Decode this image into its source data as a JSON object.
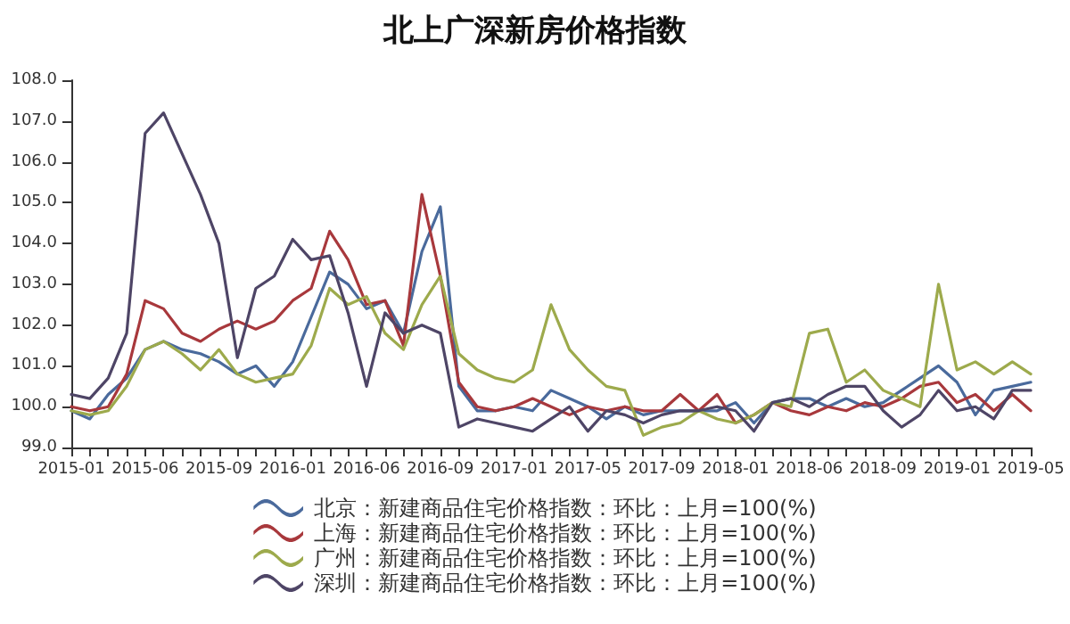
{
  "chart_data": {
    "type": "line",
    "title": "北上广深新房价格指数",
    "categories": [
      "2015-01",
      null,
      null,
      null,
      "2015-06",
      null,
      null,
      null,
      "2015-09",
      null,
      null,
      null,
      "2016-01",
      null,
      null,
      null,
      "2016-06",
      null,
      null,
      null,
      "2016-09",
      null,
      null,
      null,
      "2017-01",
      null,
      null,
      null,
      "2017-05",
      null,
      null,
      null,
      "2017-09",
      null,
      null,
      null,
      "2018-01",
      null,
      null,
      null,
      "2018-06",
      null,
      null,
      null,
      "2018-09",
      null,
      null,
      null,
      "2019-01",
      null,
      null,
      null,
      "2019-05"
    ],
    "series": [
      {
        "name": "北京：新建商品住宅价格指数：环比：上月=100(%)",
        "color": "#4a6a9c",
        "values": [
          99.9,
          99.7,
          100.3,
          100.7,
          101.4,
          101.6,
          101.4,
          101.3,
          101.1,
          100.8,
          101.0,
          100.5,
          101.1,
          102.2,
          103.3,
          103.0,
          102.4,
          102.6,
          101.8,
          103.8,
          104.9,
          100.5,
          99.9,
          99.9,
          100.0,
          99.9,
          100.4,
          100.2,
          100.0,
          99.7,
          100.0,
          99.8,
          99.9,
          99.9,
          99.9,
          99.9,
          100.1,
          99.6,
          100.1,
          100.2,
          100.2,
          100.0,
          100.2,
          100.0,
          100.1,
          100.4,
          100.7,
          101.0,
          100.6,
          99.8,
          100.4,
          100.5,
          100.6
        ]
      },
      {
        "name": "上海：新建商品住宅价格指数：环比：上月=100(%)",
        "color": "#a8383c",
        "values": [
          100.0,
          99.9,
          100.0,
          100.8,
          102.6,
          102.4,
          101.8,
          101.6,
          101.9,
          102.1,
          101.9,
          102.1,
          102.6,
          102.9,
          104.3,
          103.6,
          102.5,
          102.6,
          101.5,
          105.2,
          103.2,
          100.6,
          100.0,
          99.9,
          100.0,
          100.2,
          100.0,
          99.8,
          100.0,
          99.9,
          100.0,
          99.9,
          99.9,
          100.3,
          99.9,
          100.3,
          99.6,
          99.8,
          100.1,
          99.9,
          99.8,
          100.0,
          99.9,
          100.1,
          100.0,
          100.2,
          100.5,
          100.6,
          100.1,
          100.3,
          99.9,
          100.3,
          99.9
        ]
      },
      {
        "name": "广州：新建商品住宅价格指数：环比：上月=100(%)",
        "color": "#9daa4c",
        "values": [
          99.9,
          99.8,
          99.9,
          100.5,
          101.4,
          101.6,
          101.3,
          100.9,
          101.4,
          100.8,
          100.6,
          100.7,
          100.8,
          101.5,
          102.9,
          102.5,
          102.7,
          101.8,
          101.4,
          102.5,
          103.2,
          101.3,
          100.9,
          100.7,
          100.6,
          100.9,
          102.5,
          101.4,
          100.9,
          100.5,
          100.4,
          99.3,
          99.5,
          99.6,
          99.9,
          99.7,
          99.6,
          99.8,
          100.1,
          100.0,
          101.8,
          101.9,
          100.6,
          100.9,
          100.4,
          100.2,
          100.0,
          103.0,
          100.9,
          101.1,
          100.8,
          101.1,
          100.8
        ]
      },
      {
        "name": "深圳：新建商品住宅价格指数：环比：上月=100(%)",
        "color": "#4e4566",
        "values": [
          100.3,
          100.2,
          100.7,
          101.8,
          106.7,
          107.2,
          106.2,
          105.2,
          104.0,
          101.2,
          102.9,
          103.2,
          104.1,
          103.6,
          103.7,
          102.3,
          100.5,
          102.3,
          101.8,
          102.0,
          101.8,
          99.5,
          99.7,
          99.6,
          99.5,
          99.4,
          99.7,
          100.0,
          99.4,
          99.9,
          99.8,
          99.6,
          99.8,
          99.9,
          99.9,
          100.0,
          99.9,
          99.4,
          100.1,
          100.2,
          100.0,
          100.3,
          100.5,
          100.5,
          99.9,
          99.5,
          99.8,
          100.4,
          99.9,
          100.0,
          99.7,
          100.4,
          100.4
        ]
      }
    ],
    "ylim": [
      99,
      108
    ],
    "yticks": [
      {
        "value": 99,
        "label": "99.0"
      },
      {
        "value": 100,
        "label": "100.0"
      },
      {
        "value": 101,
        "label": "101.0"
      },
      {
        "value": 102,
        "label": "102.0"
      },
      {
        "value": 103,
        "label": "103.0"
      },
      {
        "value": 104,
        "label": "104.0"
      },
      {
        "value": 105,
        "label": "105.0"
      },
      {
        "value": 106,
        "label": "106.0"
      },
      {
        "value": 107,
        "label": "107.0"
      },
      {
        "value": 108,
        "label": "108.0"
      }
    ],
    "grid": false,
    "legend": "bottom",
    "marker": "none",
    "line_style": "solid"
  }
}
